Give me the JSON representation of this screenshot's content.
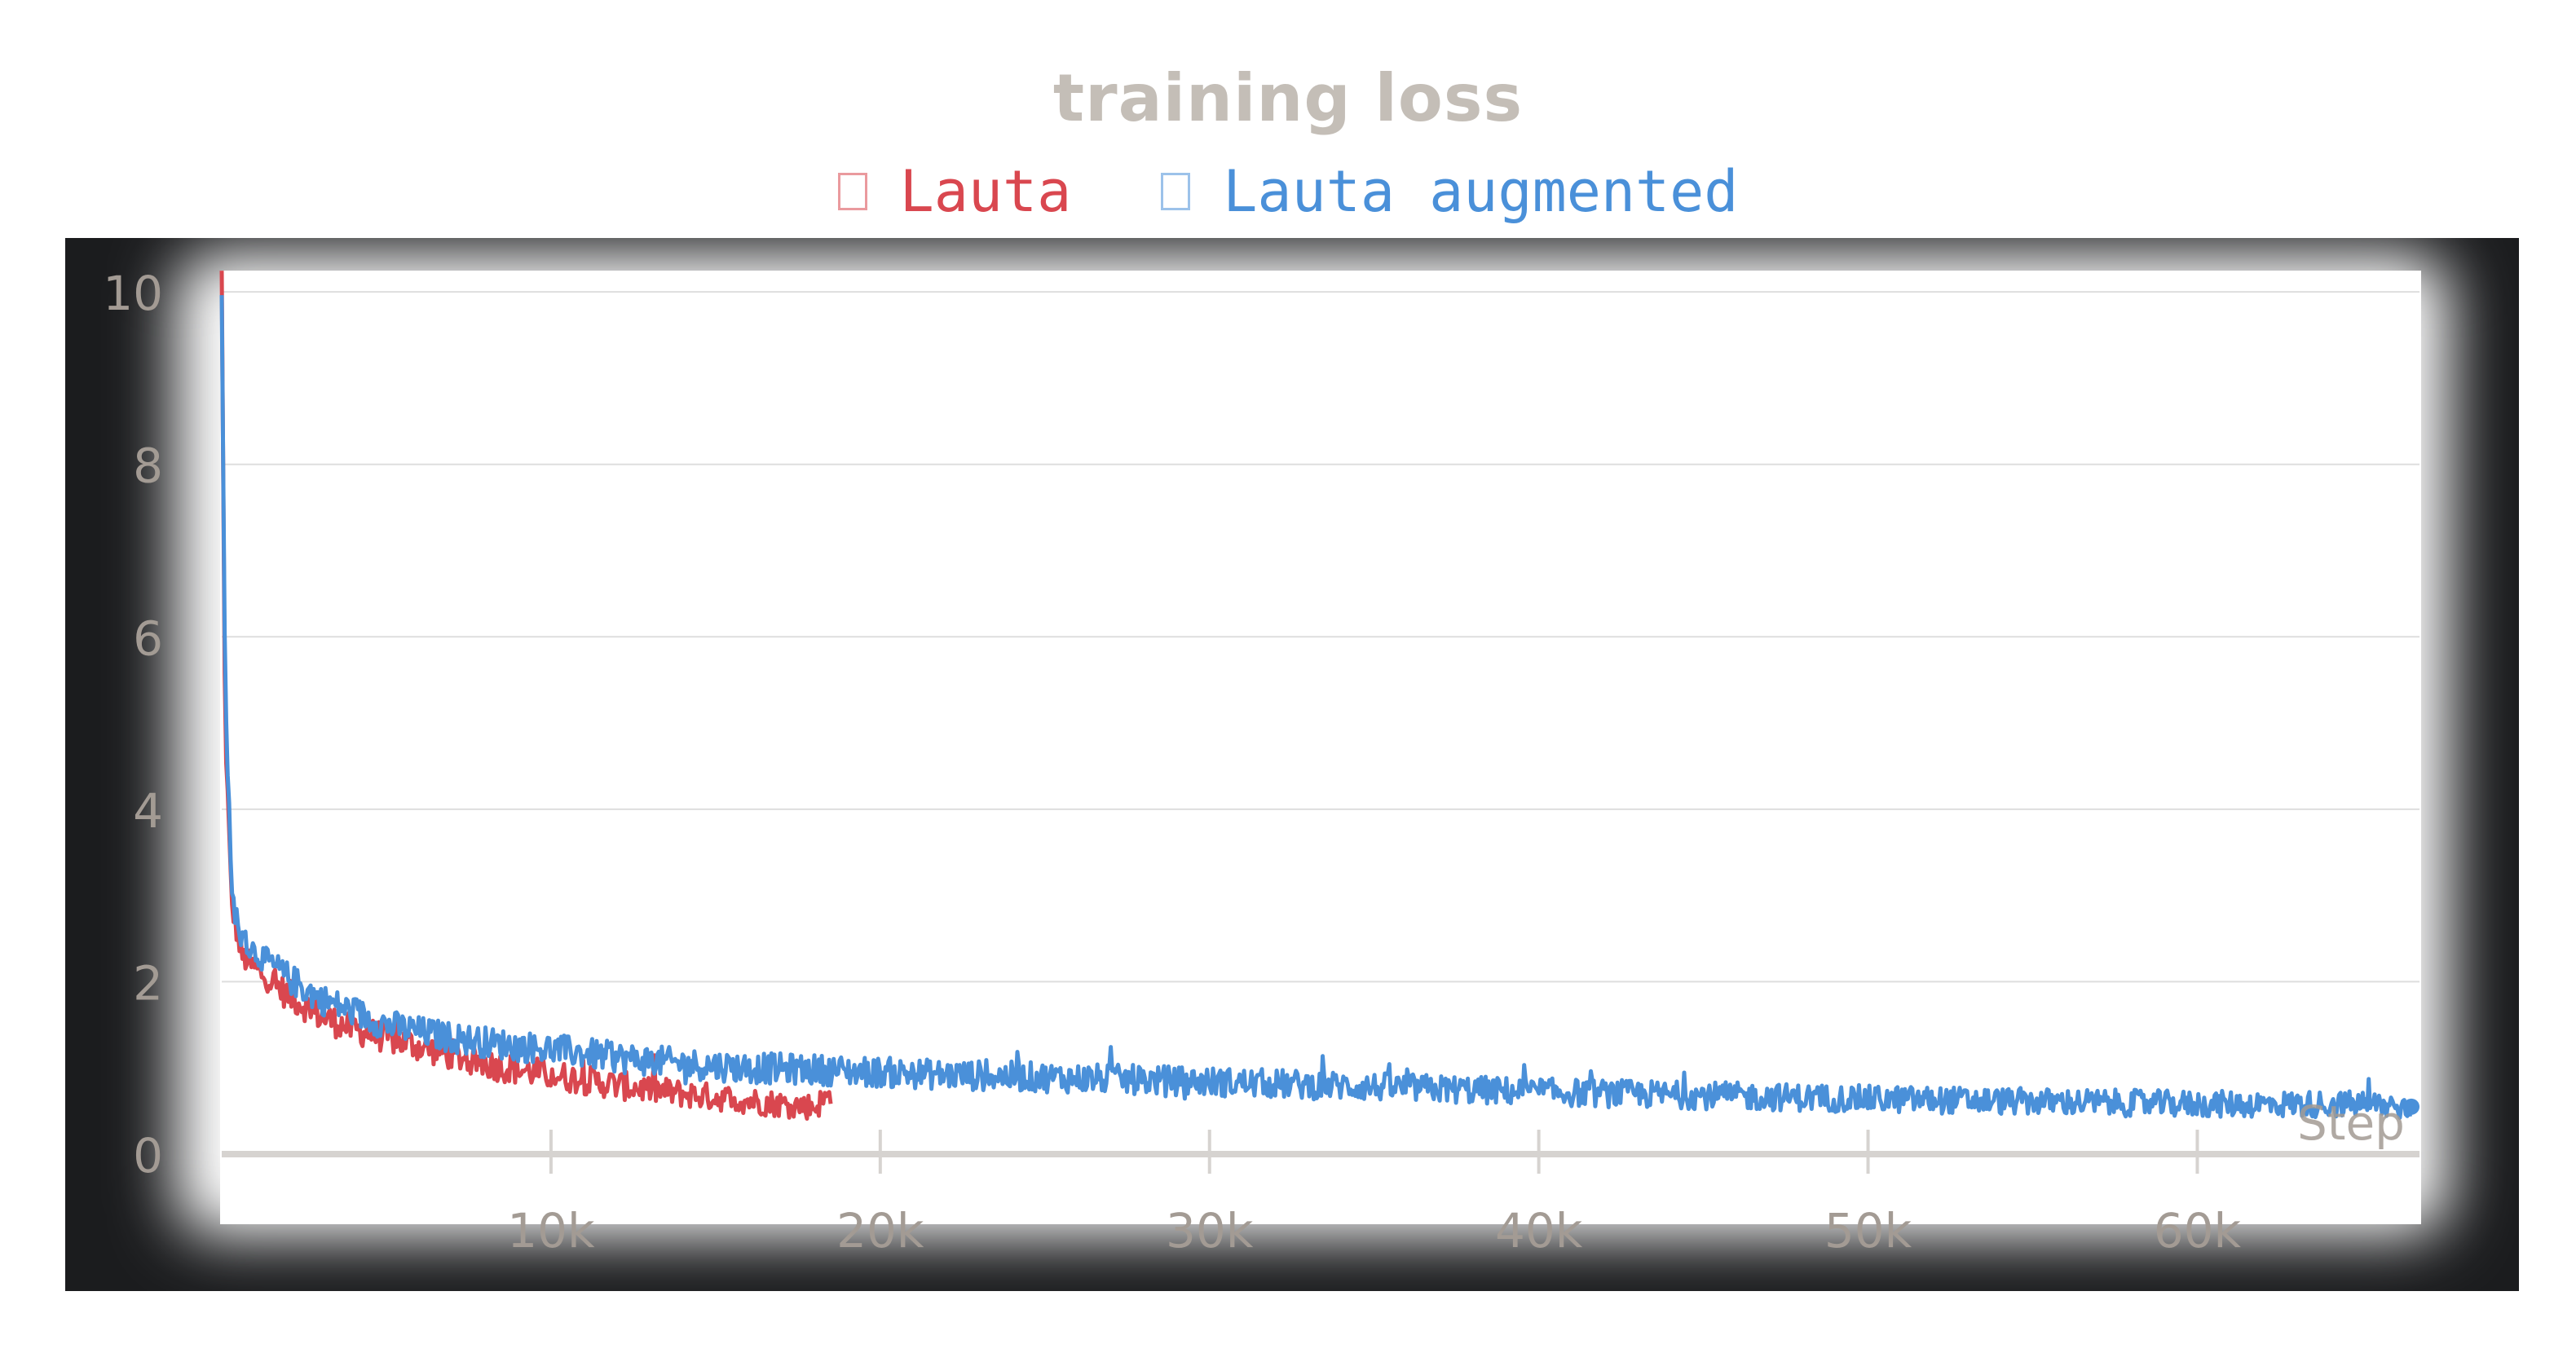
{
  "chart_data": {
    "type": "line",
    "title": "training loss",
    "xlabel": "Step",
    "ylabel": "",
    "xlim": [
      0,
      66500
    ],
    "ylim": [
      0,
      10.2
    ],
    "x_ticks": [
      10000,
      20000,
      30000,
      40000,
      50000,
      60000
    ],
    "x_tick_labels": [
      "10k",
      "20k",
      "30k",
      "40k",
      "50k",
      "60k"
    ],
    "y_ticks": [
      0,
      2,
      4,
      6,
      8,
      10
    ],
    "y_tick_labels": [
      "0",
      "2",
      "4",
      "6",
      "8",
      "10"
    ],
    "grid": true,
    "legend_position": "top",
    "series": [
      {
        "name": "Lauta",
        "color": "#d9474f",
        "x": [
          0,
          100,
          300,
          600,
          1000,
          1500,
          2000,
          3000,
          4000,
          5000,
          6000,
          7000,
          8000,
          9000,
          10000,
          11000,
          12000,
          13000,
          14000,
          15000,
          16000,
          17000,
          18000,
          18500
        ],
        "y": [
          10.2,
          5.0,
          2.9,
          2.3,
          2.15,
          2.0,
          1.85,
          1.6,
          1.45,
          1.35,
          1.25,
          1.15,
          1.05,
          0.98,
          0.92,
          0.86,
          0.8,
          0.75,
          0.7,
          0.66,
          0.62,
          0.58,
          0.55,
          0.68
        ]
      },
      {
        "name": "Lauta augmented",
        "color": "#4a90d9",
        "x": [
          0,
          100,
          300,
          600,
          1000,
          1500,
          2000,
          3000,
          4000,
          5000,
          6000,
          7000,
          8000,
          9000,
          10000,
          12000,
          14000,
          16000,
          18000,
          20000,
          22000,
          24000,
          26000,
          28000,
          30000,
          35000,
          40000,
          45000,
          50000,
          55000,
          60000,
          65000,
          66500
        ],
        "y": [
          10.1,
          5.5,
          3.0,
          2.5,
          2.35,
          2.2,
          2.05,
          1.8,
          1.65,
          1.5,
          1.42,
          1.35,
          1.3,
          1.25,
          1.22,
          1.12,
          1.05,
          1.0,
          0.98,
          0.95,
          0.92,
          0.9,
          0.88,
          0.86,
          0.84,
          0.78,
          0.72,
          0.68,
          0.64,
          0.61,
          0.58,
          0.58,
          0.55
        ]
      }
    ]
  }
}
